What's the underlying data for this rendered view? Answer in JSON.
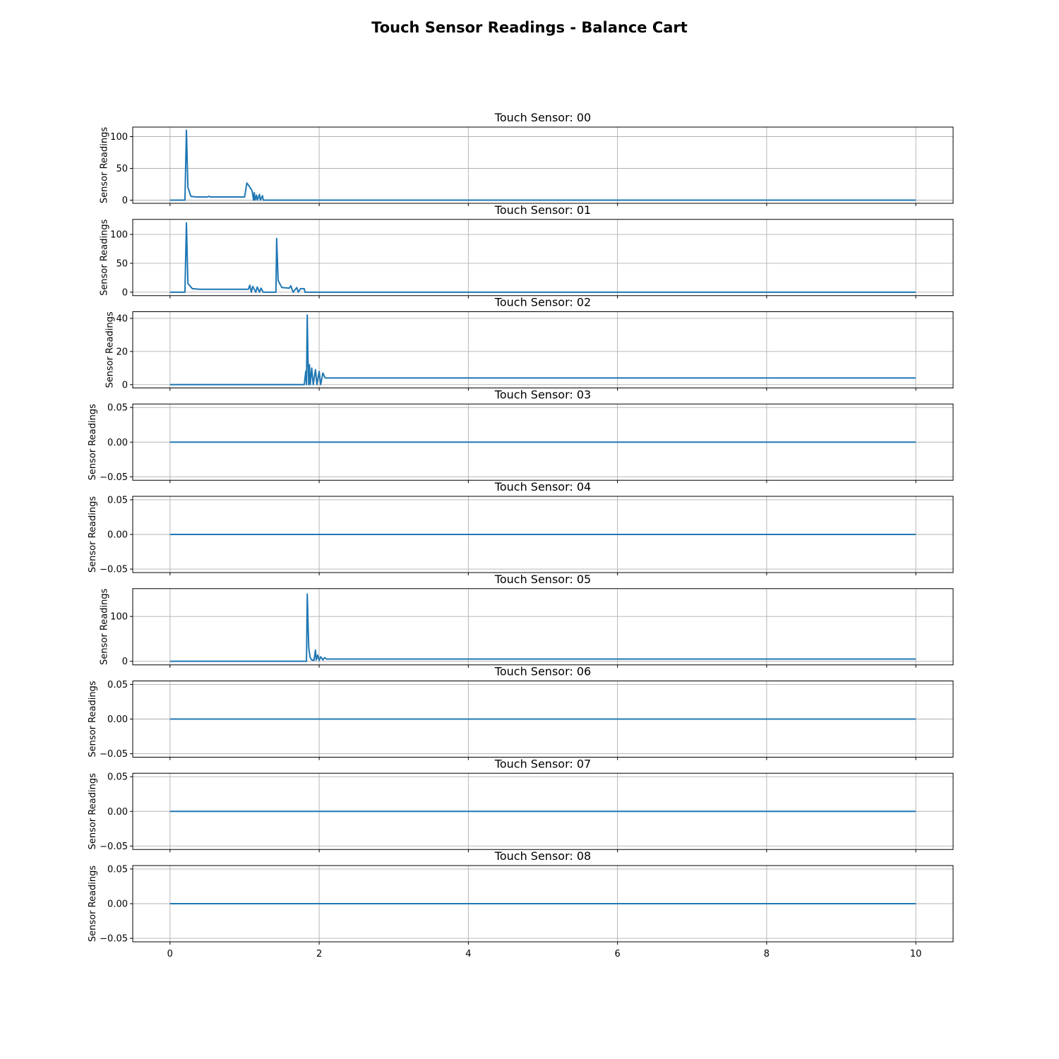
{
  "title": "Touch Sensor Readings - Balance Cart",
  "series_color": "#1f77b4",
  "chart_data": [
    {
      "type": "line",
      "title": "Touch Sensor: 00",
      "ylabel": "Sensor Readings",
      "xlim": [
        -0.5,
        10.5
      ],
      "ylim": [
        -5,
        115
      ],
      "yticks": [
        0,
        50,
        100
      ],
      "ytick_labels": [
        "0",
        "50",
        "100"
      ],
      "x": [
        0,
        0.2,
        0.22,
        0.24,
        0.28,
        0.35,
        0.5,
        0.52,
        0.54,
        1.0,
        1.03,
        1.05,
        1.1,
        1.12,
        1.13,
        1.14,
        1.16,
        1.17,
        1.2,
        1.21,
        1.24,
        1.25,
        1.3,
        10
      ],
      "y": [
        0,
        0,
        110,
        20,
        6,
        5,
        5,
        6,
        5,
        5,
        27,
        24,
        15,
        0,
        12,
        0,
        8,
        0,
        9,
        0,
        7,
        0,
        0,
        0
      ]
    },
    {
      "type": "line",
      "title": "Touch Sensor: 01",
      "ylabel": "Sensor Readings",
      "xlim": [
        -0.5,
        10.5
      ],
      "ylim": [
        -6,
        126
      ],
      "yticks": [
        0,
        50,
        100
      ],
      "ytick_labels": [
        "0",
        "50",
        "100"
      ],
      "x": [
        0,
        0.2,
        0.22,
        0.24,
        0.3,
        0.4,
        1.0,
        1.05,
        1.07,
        1.09,
        1.11,
        1.15,
        1.17,
        1.2,
        1.22,
        1.25,
        1.42,
        1.43,
        1.45,
        1.5,
        1.6,
        1.62,
        1.65,
        1.7,
        1.72,
        1.75,
        1.8,
        1.81,
        10
      ],
      "y": [
        0,
        0,
        120,
        15,
        6,
        5,
        5,
        5,
        12,
        0,
        10,
        0,
        9,
        0,
        7,
        0,
        0,
        93,
        20,
        8,
        7,
        11,
        0,
        8,
        0,
        6,
        6,
        0,
        0
      ]
    },
    {
      "type": "line",
      "title": "Touch Sensor: 02",
      "ylabel": "Sensor Readings",
      "xlim": [
        -0.5,
        10.5
      ],
      "ylim": [
        -2,
        44
      ],
      "yticks": [
        0,
        20,
        40
      ],
      "ytick_labels": [
        "0",
        "20",
        "40"
      ],
      "x": [
        0,
        1.8,
        1.82,
        1.83,
        1.84,
        1.85,
        1.86,
        1.87,
        1.88,
        1.9,
        1.92,
        1.95,
        1.97,
        2.0,
        2.02,
        2.05,
        2.08,
        2.1,
        10
      ],
      "y": [
        0,
        0,
        8,
        0,
        42,
        15,
        0,
        12,
        0,
        10,
        0,
        9,
        0,
        8,
        0,
        7,
        4,
        4,
        4
      ]
    },
    {
      "type": "line",
      "title": "Touch Sensor: 03",
      "ylabel": "Sensor Readings",
      "xlim": [
        -0.5,
        10.5
      ],
      "ylim": [
        -0.055,
        0.055
      ],
      "yticks": [
        -0.05,
        0,
        0.05
      ],
      "ytick_labels": [
        "−0.05",
        "0.00",
        "0.05"
      ],
      "x": [
        0,
        10
      ],
      "y": [
        0,
        0
      ]
    },
    {
      "type": "line",
      "title": "Touch Sensor: 04",
      "ylabel": "Sensor Readings",
      "xlim": [
        -0.5,
        10.5
      ],
      "ylim": [
        -0.055,
        0.055
      ],
      "yticks": [
        -0.05,
        0,
        0.05
      ],
      "ytick_labels": [
        "−0.05",
        "0.00",
        "0.05"
      ],
      "x": [
        0,
        10
      ],
      "y": [
        0,
        0
      ]
    },
    {
      "type": "line",
      "title": "Touch Sensor: 05",
      "ylabel": "Sensor Readings",
      "xlim": [
        -0.5,
        10.5
      ],
      "ylim": [
        -8,
        162
      ],
      "yticks": [
        0,
        100
      ],
      "ytick_labels": [
        "0",
        "100"
      ],
      "x": [
        0,
        1.83,
        1.84,
        1.86,
        1.88,
        1.9,
        1.93,
        1.95,
        1.96,
        1.98,
        2.0,
        2.02,
        2.05,
        2.07,
        2.1,
        10
      ],
      "y": [
        0,
        0,
        150,
        30,
        8,
        3,
        2,
        25,
        3,
        14,
        2,
        10,
        3,
        8,
        5,
        5
      ]
    },
    {
      "type": "line",
      "title": "Touch Sensor: 06",
      "ylabel": "Sensor Readings",
      "xlim": [
        -0.5,
        10.5
      ],
      "ylim": [
        -0.055,
        0.055
      ],
      "yticks": [
        -0.05,
        0,
        0.05
      ],
      "ytick_labels": [
        "−0.05",
        "0.00",
        "0.05"
      ],
      "x": [
        0,
        10
      ],
      "y": [
        0,
        0
      ]
    },
    {
      "type": "line",
      "title": "Touch Sensor: 07",
      "ylabel": "Sensor Readings",
      "xlim": [
        -0.5,
        10.5
      ],
      "ylim": [
        -0.055,
        0.055
      ],
      "yticks": [
        -0.05,
        0,
        0.05
      ],
      "ytick_labels": [
        "−0.05",
        "0.00",
        "0.05"
      ],
      "x": [
        0,
        10
      ],
      "y": [
        0,
        0
      ]
    },
    {
      "type": "line",
      "title": "Touch Sensor: 08",
      "ylabel": "Sensor Readings",
      "xlim": [
        -0.5,
        10.5
      ],
      "ylim": [
        -0.055,
        0.055
      ],
      "yticks": [
        -0.05,
        0,
        0.05
      ],
      "ytick_labels": [
        "−0.05",
        "0.00",
        "0.05"
      ],
      "x": [
        0,
        10
      ],
      "y": [
        0,
        0
      ]
    }
  ],
  "xaxis": {
    "ticks": [
      0,
      2,
      4,
      6,
      8,
      10
    ],
    "tick_labels": [
      "0",
      "2",
      "4",
      "6",
      "8",
      "10"
    ],
    "grid": true
  }
}
